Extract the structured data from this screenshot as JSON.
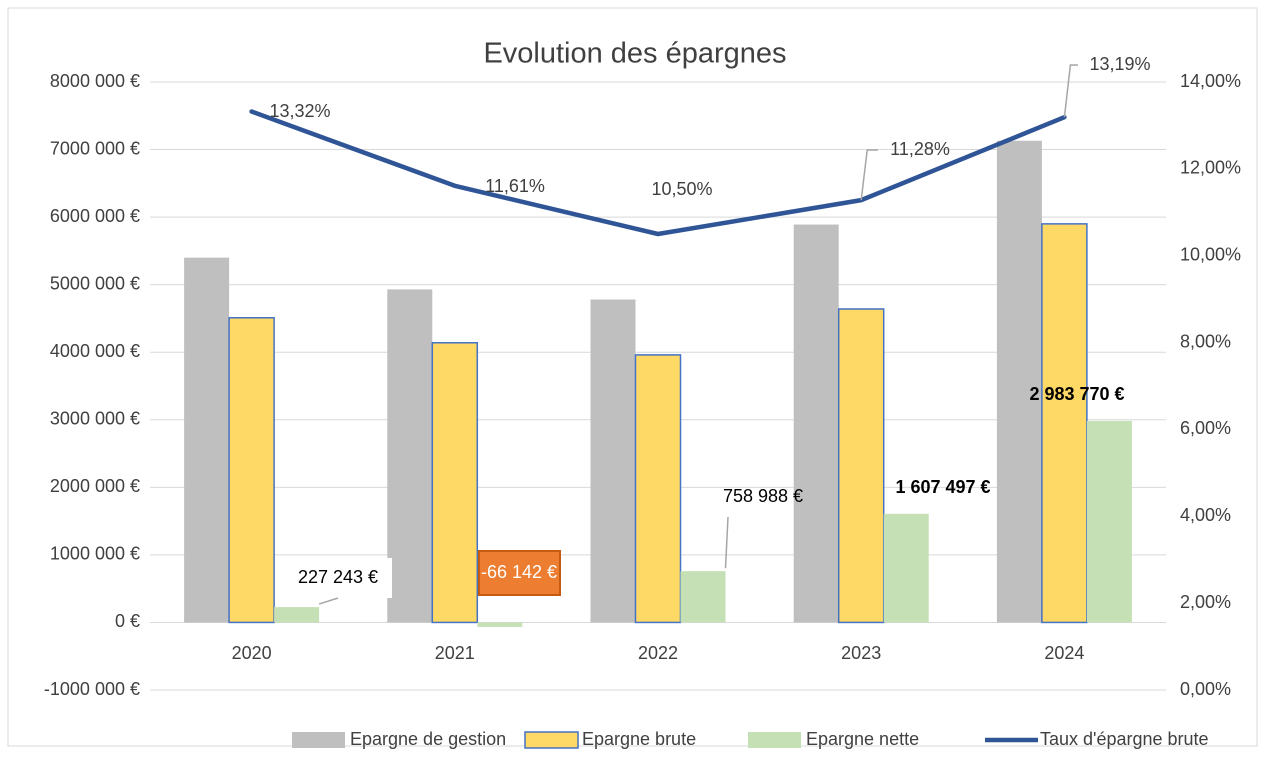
{
  "chart_data": {
    "type": "bar",
    "title": "Evolution des épargnes",
    "categories": [
      "2020",
      "2021",
      "2022",
      "2023",
      "2024"
    ],
    "series": [
      {
        "name": "Epargne de gestion",
        "color": "#bfbfbf",
        "values": [
          5400000,
          4930000,
          4780000,
          5890000,
          7130000
        ]
      },
      {
        "name": "Epargne brute",
        "color": "#ffd966",
        "values": [
          4510000,
          4140000,
          3960000,
          4640000,
          5900000
        ]
      },
      {
        "name": "Epargne nette",
        "color": "#c5e0b4",
        "values": [
          227243,
          -66142,
          758988,
          1607497,
          2983770
        ],
        "value_labels": [
          "227 243 €",
          "-66 142 €",
          "758 988 €",
          "1 607 497 €",
          "2 983 770 €"
        ]
      },
      {
        "name": "Taux d'épargne brute",
        "type": "line",
        "axis": "y2",
        "color": "#2f5597",
        "values": [
          13.32,
          11.61,
          10.5,
          11.28,
          13.19
        ],
        "value_labels": [
          "13,32%",
          "11,61%",
          "10,50%",
          "11,28%",
          "13,19%"
        ]
      }
    ],
    "ylim": [
      -1000000,
      8000000
    ],
    "yticks": [
      {
        "value": -1000000,
        "label": "-1000 000 €"
      },
      {
        "value": 0,
        "label": "0 €"
      },
      {
        "value": 1000000,
        "label": "1000 000 €"
      },
      {
        "value": 2000000,
        "label": "2000 000 €"
      },
      {
        "value": 3000000,
        "label": "3000 000 €"
      },
      {
        "value": 4000000,
        "label": "4000 000 €"
      },
      {
        "value": 5000000,
        "label": "5000 000 €"
      },
      {
        "value": 6000000,
        "label": "6000 000 €"
      },
      {
        "value": 7000000,
        "label": "7000 000 €"
      },
      {
        "value": 8000000,
        "label": "8000 000 €"
      }
    ],
    "y2lim": [
      0,
      14
    ],
    "y2ticks": [
      {
        "value": 0,
        "label": "0,00%"
      },
      {
        "value": 2,
        "label": "2,00%"
      },
      {
        "value": 4,
        "label": "4,00%"
      },
      {
        "value": 6,
        "label": "6,00%"
      },
      {
        "value": 8,
        "label": "8,00%"
      },
      {
        "value": 10,
        "label": "10,00%"
      },
      {
        "value": 12,
        "label": "12,00%"
      },
      {
        "value": 14,
        "label": "14,00%"
      }
    ],
    "grid": true,
    "legend": "bottom"
  }
}
